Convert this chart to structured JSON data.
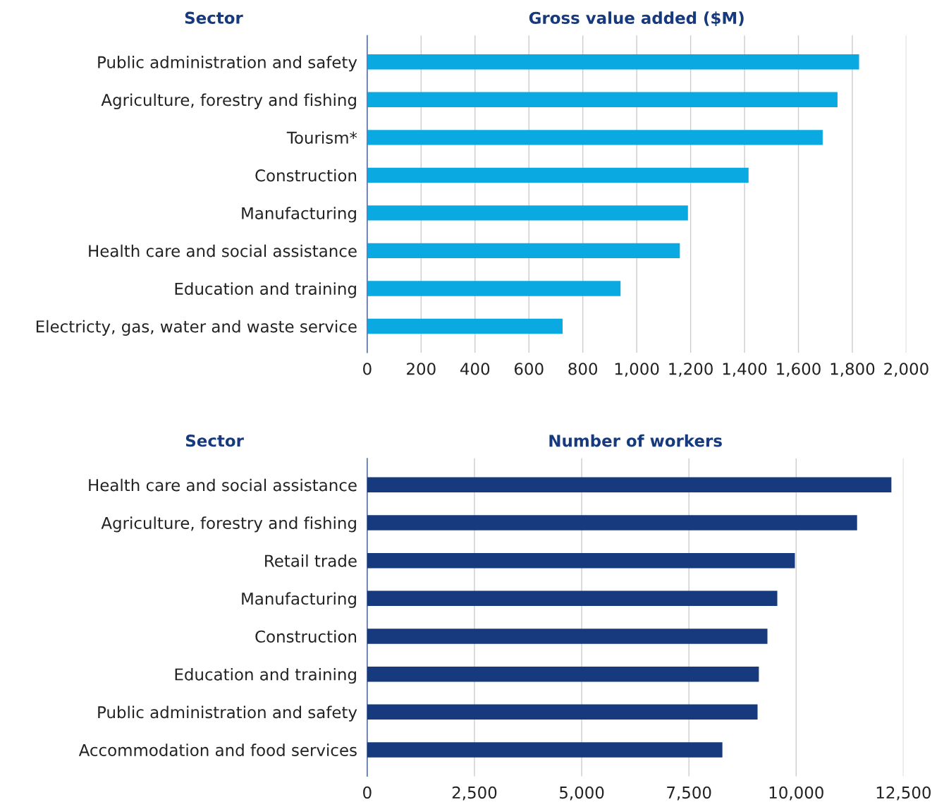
{
  "chart_data": [
    {
      "type": "bar",
      "orientation": "horizontal",
      "title": "Gross value added ($M)",
      "ylabel": "Sector",
      "categories": [
        "Public administration and safety",
        "Agriculture, forestry and fishing",
        "Tourism*",
        "Construction",
        "Manufacturing",
        "Health care and social assistance",
        "Education and training",
        "Electricty, gas, water and waste service"
      ],
      "values": [
        1825,
        1745,
        1690,
        1415,
        1190,
        1160,
        940,
        725
      ],
      "color": "#0aa9e1",
      "xlim": [
        0,
        2000
      ],
      "xticks": [
        0,
        200,
        400,
        600,
        800,
        {
          "value": 1000,
          "label": "1,000"
        },
        {
          "value": 1200,
          "label": "1,200"
        },
        {
          "value": 1400,
          "label": "1,400"
        },
        {
          "value": 1600,
          "label": "1,600"
        },
        {
          "value": 1800,
          "label": "1,800"
        },
        {
          "value": 2000,
          "label": "2,000"
        }
      ],
      "grid": "x",
      "legend": false
    },
    {
      "type": "bar",
      "orientation": "horizontal",
      "title": "Number of workers",
      "ylabel": "Sector",
      "categories": [
        "Health care and social assistance",
        "Agriculture, forestry and fishing",
        "Retail trade",
        "Manufacturing",
        "Construction",
        "Education and training",
        "Public administration and safety",
        "Accommodation and food services"
      ],
      "values": [
        12220,
        11420,
        9970,
        9560,
        9330,
        9130,
        9100,
        8280
      ],
      "color": "#163a7d",
      "xlim": [
        0,
        12500
      ],
      "xticks": [
        0,
        {
          "value": 2500,
          "label": "2,500"
        },
        {
          "value": 5000,
          "label": "5,000"
        },
        {
          "value": 7500,
          "label": "7,500"
        },
        {
          "value": 10000,
          "label": "10,000"
        },
        {
          "value": 12500,
          "label": "12,500"
        }
      ],
      "grid": "x",
      "legend": false
    }
  ]
}
